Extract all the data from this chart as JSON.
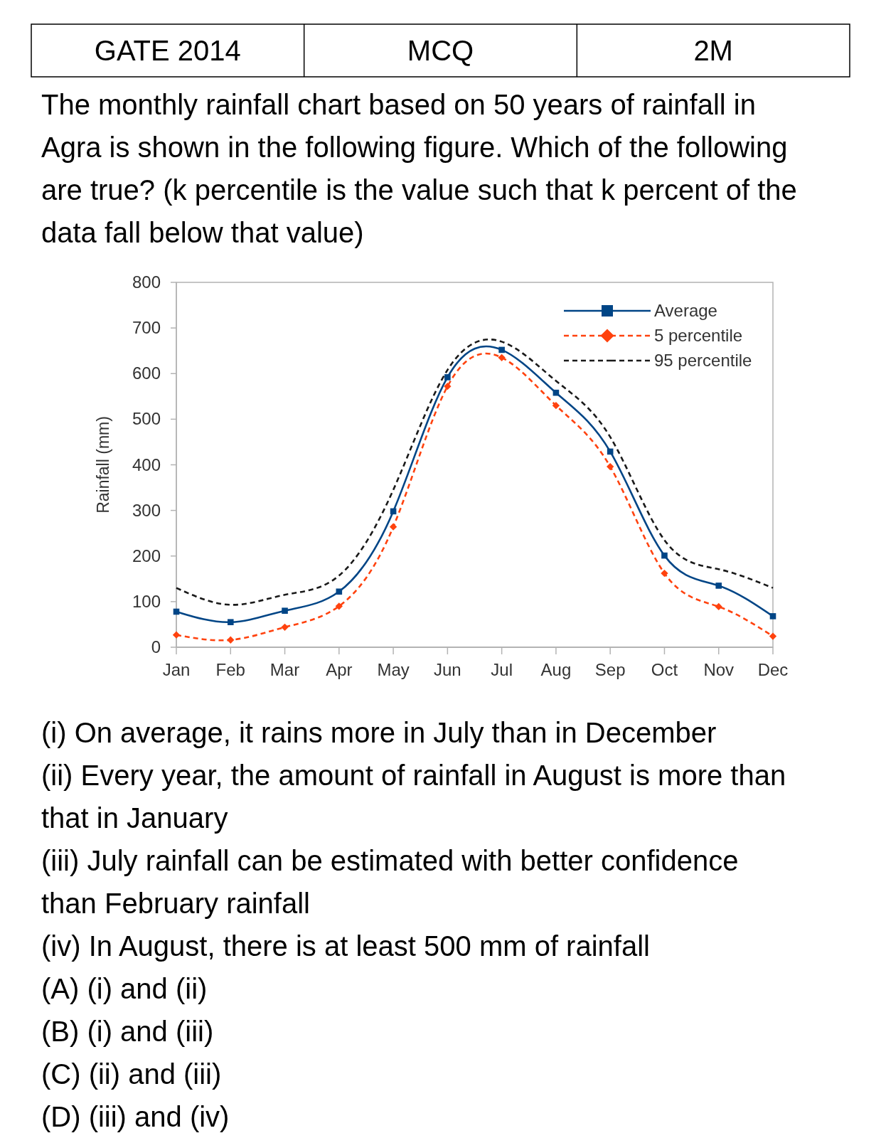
{
  "chart_data": {
    "type": "line",
    "title": "The monthly rainfall chart based on 50 years of rainfall in Agra is shown in the following figure. Which of the following are true? (k percentile is the value such that k percent of the data fall below that value)",
    "ylabel": "Rainfall (mm)",
    "categories": [
      "Jan",
      "Feb",
      "Mar",
      "Apr",
      "May",
      "Jun",
      "Jul",
      "Aug",
      "Sep",
      "Oct",
      "Nov",
      "Dec"
    ],
    "series": [
      {
        "name": "Average",
        "color": "#004586",
        "marker": "square",
        "line_style": "solid",
        "values": [
          78,
          55,
          80,
          122,
          298,
          592,
          652,
          558,
          429,
          201,
          135,
          68
        ]
      },
      {
        "name": "5 percentile",
        "color": "#ff420e",
        "marker": "diamond",
        "line_style": "dashed",
        "values": [
          27,
          16,
          44,
          90,
          264,
          572,
          635,
          530,
          396,
          162,
          89,
          24
        ]
      },
      {
        "name": "95 percentile",
        "color": "#1a1a1a",
        "marker": "none",
        "line_style": "dashed",
        "values": [
          130,
          93,
          115,
          157,
          345,
          608,
          670,
          584,
          461,
          235,
          171,
          130
        ]
      }
    ],
    "ylim": [
      0,
      800
    ],
    "yticks": [
      0,
      100,
      200,
      300,
      400,
      500,
      600,
      700,
      800
    ],
    "legend": "top right",
    "annotations": [
      "GATE 2014",
      "MCQ",
      "2M",
      "(i) On average, it rains more in July than in December",
      "(ii) Every year, the amount of rainfall in August is more than that in January",
      "(iii) July rainfall can be estimated with better confidence than February rainfall",
      "(iv) In August, there is at least 500 mm of rainfall",
      "(A) (i) and (ii)",
      "(B) (i) and (iii)",
      "(C) (ii) and (iii)",
      "(D) (iii) and (iv)"
    ]
  }
}
